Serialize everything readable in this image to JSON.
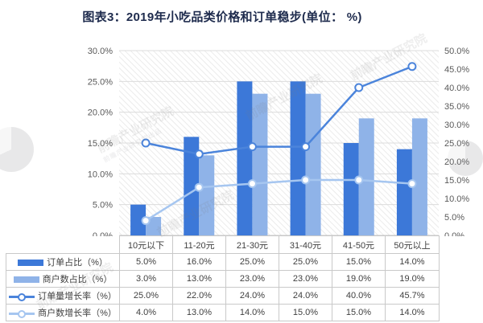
{
  "title": "图表3：2019年小吃品类价格和订单稳步(单位： %)",
  "watermark": {
    "text": "前瞻产业研究院",
    "subtext": "前瞻产业研究院出品"
  },
  "colors": {
    "dark_blue": "#3c78d8",
    "light_blue": "#8fb3e8",
    "dark_line": "#4b84db",
    "light_line": "#a6c6f0",
    "grid": "#dcdcdc",
    "axis_text": "#595959",
    "hatch": "#ebebeb",
    "table_border": "#c9c9c9",
    "title_text": "#1e2b4d"
  },
  "chart_data": {
    "type": "bar+line",
    "title": "图表3：2019年小吃品类价格和订单稳步(单位： %)",
    "categories": [
      "10元以下",
      "11-20元",
      "21-30元",
      "31-40元",
      "41-50元",
      "50元以上"
    ],
    "series": [
      {
        "name": "订单占比（%）",
        "kind": "bar",
        "axis": "left",
        "color": "#3c78d8",
        "values": [
          5.0,
          16.0,
          25.0,
          25.0,
          15.0,
          14.0
        ],
        "display": [
          "5.0%",
          "16.0%",
          "25.0%",
          "25.0%",
          "15.0%",
          "14.0%"
        ]
      },
      {
        "name": "商户数占比（%）",
        "kind": "bar",
        "axis": "left",
        "color": "#8fb3e8",
        "values": [
          3.0,
          13.0,
          23.0,
          23.0,
          19.0,
          19.0
        ],
        "display": [
          "3.0%",
          "13.0%",
          "23.0%",
          "23.0%",
          "19.0%",
          "19.0%"
        ]
      },
      {
        "name": "订单量增长率（%）",
        "kind": "line",
        "axis": "right",
        "color": "#4b84db",
        "values": [
          25.0,
          22.0,
          24.0,
          24.0,
          40.0,
          45.7
        ],
        "display": [
          "25.0%",
          "22.0%",
          "24.0%",
          "24.0%",
          "40.0%",
          "45.7%"
        ]
      },
      {
        "name": "商户数增长率（%）",
        "kind": "line",
        "axis": "right",
        "color": "#a6c6f0",
        "values": [
          4.0,
          13.0,
          14.0,
          15.0,
          15.0,
          14.0
        ],
        "display": [
          "4.0%",
          "13.0%",
          "14.0%",
          "15.0%",
          "15.0%",
          "14.0%"
        ]
      }
    ],
    "left_axis": {
      "min": 0,
      "max": 30,
      "step": 5,
      "tick_labels": [
        "0.0%",
        "5.0%",
        "10.0%",
        "15.0%",
        "20.0%",
        "25.0%",
        "30.0%"
      ]
    },
    "right_axis": {
      "min": 0,
      "max": 50,
      "step": 5,
      "tick_labels": [
        "0.0%",
        "5.0%",
        "10.0%",
        "15.0%",
        "20.0%",
        "25.0%",
        "30.0%",
        "35.0%",
        "40.0%",
        "45.0%",
        "50.0%"
      ]
    },
    "grid": true,
    "legend_position": "table-left"
  }
}
